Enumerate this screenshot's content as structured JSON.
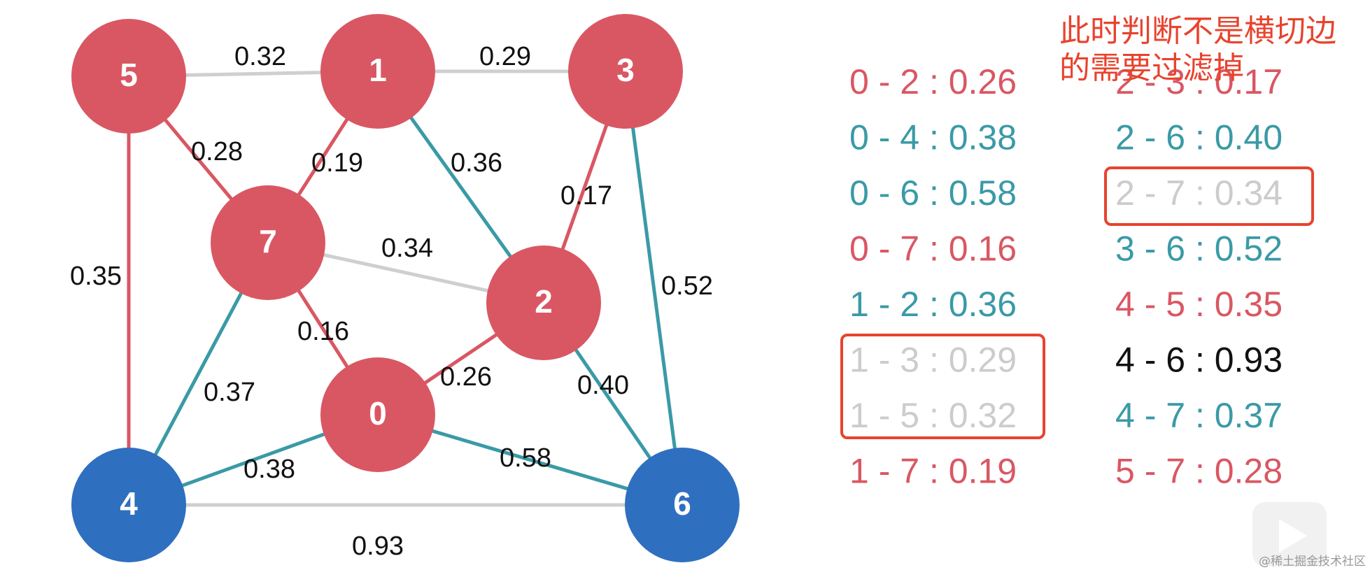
{
  "graph": {
    "nodes": [
      {
        "label": "5",
        "color": "#d95763"
      },
      {
        "label": "1",
        "color": "#d95763"
      },
      {
        "label": "3",
        "color": "#d95763"
      },
      {
        "label": "7",
        "color": "#d95763"
      },
      {
        "label": "2",
        "color": "#d95763"
      },
      {
        "label": "0",
        "color": "#d95763"
      },
      {
        "label": "4",
        "color": "#2f6fbf"
      },
      {
        "label": "6",
        "color": "#2f6fbf"
      }
    ],
    "edges": [
      {
        "label": "0.32",
        "color": "#cfcfcf"
      },
      {
        "label": "0.29",
        "color": "#cfcfcf"
      },
      {
        "label": "0.28",
        "color": "#d95763"
      },
      {
        "label": "0.19",
        "color": "#d95763"
      },
      {
        "label": "0.36",
        "color": "#3a9aa6"
      },
      {
        "label": "0.17",
        "color": "#d95763"
      },
      {
        "label": "0.52",
        "color": "#3a9aa6"
      },
      {
        "label": "0.35",
        "color": "#d95763"
      },
      {
        "label": "0.34",
        "color": "#cfcfcf"
      },
      {
        "label": "0.16",
        "color": "#d95763"
      },
      {
        "label": "0.26",
        "color": "#d95763"
      },
      {
        "label": "0.40",
        "color": "#3a9aa6"
      },
      {
        "label": "0.37",
        "color": "#3a9aa6"
      },
      {
        "label": "0.38",
        "color": "#3a9aa6"
      },
      {
        "label": "0.58",
        "color": "#3a9aa6"
      },
      {
        "label": "0.93",
        "color": "#cfcfcf"
      }
    ]
  },
  "edge_list": {
    "columns": [
      [
        {
          "text": "0 - 2 : 0.26",
          "color": "#d95763"
        },
        {
          "text": "0 - 4 : 0.38",
          "color": "#3a9aa6"
        },
        {
          "text": "0 - 6 : 0.58",
          "color": "#3a9aa6"
        },
        {
          "text": "0 - 7 : 0.16",
          "color": "#d95763"
        },
        {
          "text": "1 - 2 : 0.36",
          "color": "#3a9aa6"
        },
        {
          "text": "1 - 3 : 0.29",
          "color": "#cccccc"
        },
        {
          "text": "1 - 5 : 0.32",
          "color": "#cccccc"
        },
        {
          "text": "1 - 7 : 0.19",
          "color": "#d95763"
        }
      ],
      [
        {
          "text": "2 - 3 : 0.17",
          "color": "#d95763"
        },
        {
          "text": "2 - 6 : 0.40",
          "color": "#3a9aa6"
        },
        {
          "text": "2 - 7 : 0.34",
          "color": "#cccccc"
        },
        {
          "text": "3 - 6 : 0.52",
          "color": "#3a9aa6"
        },
        {
          "text": "4 - 5 : 0.35",
          "color": "#d95763"
        },
        {
          "text": "4 - 6 : 0.93",
          "color": "#111111"
        },
        {
          "text": "4 - 7 : 0.37",
          "color": "#3a9aa6"
        },
        {
          "text": "5 - 7 : 0.28",
          "color": "#d95763"
        }
      ]
    ]
  },
  "annotation": {
    "lines": [
      "此时判断不是横切边",
      "的需要过滤掉"
    ]
  },
  "watermark": "@稀土掘金技术社区"
}
